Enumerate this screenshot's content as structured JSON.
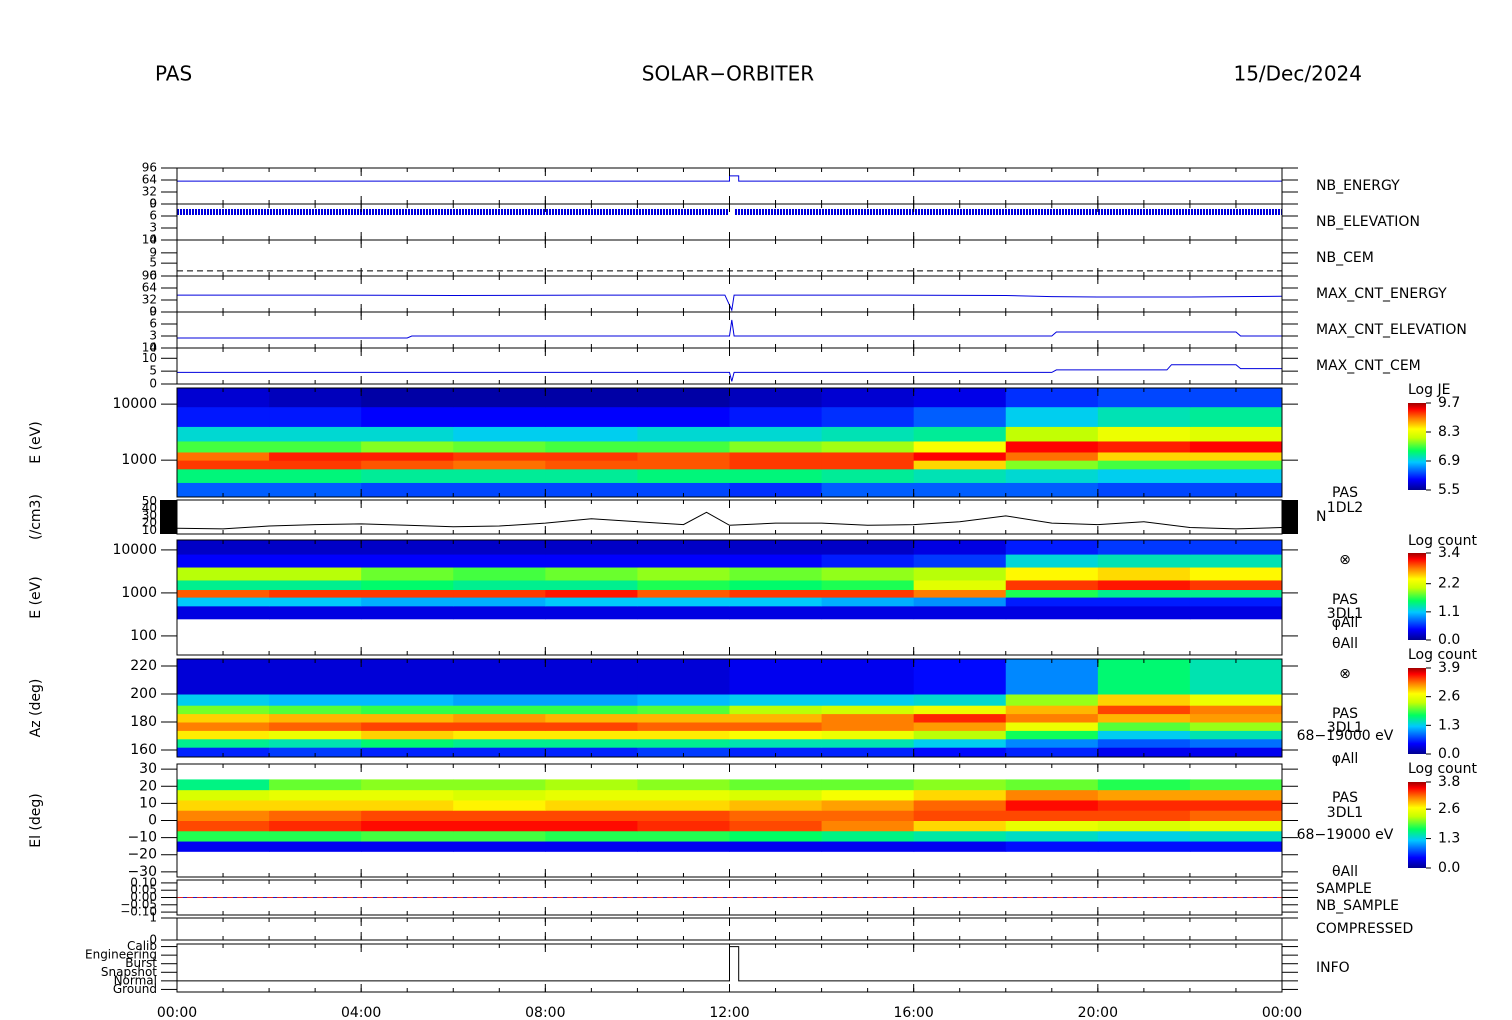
{
  "header": {
    "instrument": "PAS",
    "mission": "SOLAR−ORBITER",
    "date": "15/Dec/2024"
  },
  "chart_data": [
    {
      "type": "line",
      "xlim": [
        0,
        24
      ],
      "ylim": [
        0,
        96
      ],
      "yticks": [
        0,
        32,
        64,
        96
      ],
      "x": [
        0,
        12,
        12,
        12.2,
        12.2,
        24
      ],
      "series": [
        {
          "name": "NB_ENERGY",
          "color": "#0000dd",
          "values": [
            61,
            61,
            75,
            75,
            61,
            61
          ]
        }
      ]
    },
    {
      "type": "line",
      "xlim": [
        0,
        24
      ],
      "ylim": [
        0,
        9
      ],
      "yticks": [
        0,
        3,
        6,
        9
      ],
      "x": [
        0,
        11.98,
        12.05,
        12.12,
        24
      ],
      "series": [
        {
          "name": "NB_ELEVATION",
          "color": "#0000dd",
          "values": [
            7,
            7,
            null,
            7,
            7
          ]
        }
      ]
    },
    {
      "type": "line",
      "xlim": [
        0,
        24
      ],
      "ylim": [
        0,
        14
      ],
      "yticks": [
        0,
        5,
        9,
        14
      ],
      "x": [
        0,
        24
      ],
      "series": [
        {
          "name": "NB_CEM",
          "color": "#000000",
          "linestyle": "dashed",
          "values": [
            2,
            2
          ]
        }
      ]
    },
    {
      "type": "line",
      "xlim": [
        0,
        24
      ],
      "ylim": [
        0,
        96
      ],
      "yticks": [
        0,
        32,
        64,
        96
      ],
      "x": [
        0,
        3,
        6,
        9,
        11.9,
        12.05,
        12.1,
        15,
        18,
        19,
        20,
        22,
        24
      ],
      "series": [
        {
          "name": "MAX_CNT_ENERGY",
          "color": "#0000dd",
          "values": [
            45,
            45,
            44,
            45,
            45,
            5,
            45,
            45,
            44,
            41,
            40,
            40,
            42
          ]
        }
      ]
    },
    {
      "type": "line",
      "xlim": [
        0,
        24
      ],
      "ylim": [
        0,
        9
      ],
      "yticks": [
        0,
        3,
        6,
        9
      ],
      "x": [
        0,
        5,
        5.1,
        12,
        12.05,
        12.1,
        19,
        19.1,
        23,
        23.1,
        24
      ],
      "series": [
        {
          "name": "MAX_CNT_ELEVATION",
          "color": "#0000dd",
          "values": [
            2.5,
            2.5,
            3,
            3,
            7,
            3,
            3,
            4,
            4,
            3,
            3
          ]
        }
      ]
    },
    {
      "type": "line",
      "xlim": [
        0,
        24
      ],
      "ylim": [
        0,
        14
      ],
      "yticks": [
        0,
        5,
        10,
        14
      ],
      "x": [
        0,
        12,
        12.05,
        12.1,
        19,
        19.1,
        21.5,
        21.6,
        23,
        23.1,
        24
      ],
      "series": [
        {
          "name": "MAX_CNT_CEM",
          "color": "#0000dd",
          "values": [
            4.5,
            4.5,
            1,
            4.5,
            4.5,
            5.5,
            5.5,
            7.5,
            7.5,
            6,
            6
          ]
        }
      ]
    },
    {
      "type": "heatmap",
      "ylabel": "E (eV)",
      "ylog": true,
      "xlim": [
        0,
        24
      ],
      "ylim": [
        220,
        19400
      ],
      "yticks": [
        1000,
        10000
      ],
      "x_bins": [
        0,
        2,
        4,
        6,
        8,
        10,
        12,
        14,
        16,
        18,
        20,
        22,
        24
      ],
      "y_bins": [
        220,
        400,
        700,
        1000,
        1400,
        2200,
        4000,
        9000,
        19400
      ],
      "values": [
        [
          6.4,
          6.4,
          6.3,
          6.3,
          6.3,
          6.3,
          6.2,
          6.4,
          6.4,
          6.4,
          6.3,
          6.3
        ],
        [
          7.3,
          7.3,
          7.2,
          7.2,
          7.2,
          7.3,
          7.3,
          7.2,
          7.1,
          7.0,
          6.9,
          6.9
        ],
        [
          9.2,
          9.2,
          9.1,
          9.0,
          9.1,
          9.1,
          9.2,
          9.2,
          8.6,
          7.8,
          7.6,
          7.6
        ],
        [
          9.0,
          9.3,
          9.3,
          9.2,
          9.2,
          9.1,
          9.2,
          9.2,
          9.4,
          9.0,
          8.6,
          8.6
        ],
        [
          7.6,
          7.6,
          7.8,
          7.7,
          7.6,
          7.6,
          7.8,
          7.9,
          8.4,
          9.4,
          9.3,
          9.4
        ],
        [
          7.0,
          7.0,
          7.0,
          6.9,
          6.9,
          7.0,
          7.0,
          7.1,
          7.2,
          8.0,
          8.3,
          8.2
        ],
        [
          6.1,
          6.1,
          6.0,
          6.0,
          6.0,
          6.0,
          6.1,
          6.2,
          6.4,
          6.9,
          7.1,
          7.2
        ],
        [
          5.8,
          5.7,
          5.6,
          5.6,
          5.6,
          5.6,
          5.7,
          5.8,
          5.9,
          6.2,
          6.3,
          6.3
        ]
      ],
      "colorbar_title": "Log JE",
      "zlim": [
        5.5,
        9.7
      ],
      "zticks": [
        5.5,
        6.9,
        8.3,
        9.7
      ]
    },
    {
      "type": "line",
      "ylabel": "(/cm3)",
      "xlim": [
        0,
        24
      ],
      "ylim": [
        5,
        52
      ],
      "yticks": [
        10,
        20,
        30,
        40,
        50
      ],
      "x": [
        0,
        1,
        2,
        3,
        4,
        5,
        6,
        7,
        8,
        9,
        10,
        11,
        11.5,
        12,
        13,
        14,
        15,
        16,
        17,
        18,
        19,
        20,
        21,
        22,
        23,
        24
      ],
      "series": [
        {
          "name": "N",
          "color": "#000000",
          "values": [
            13,
            12,
            16,
            18,
            19,
            17,
            15,
            16,
            20,
            26,
            22,
            18,
            35,
            17,
            20,
            20,
            17,
            18,
            22,
            30,
            20,
            18,
            22,
            14,
            12,
            14
          ]
        }
      ],
      "annotations": [
        "PAS",
        "1DL2"
      ]
    },
    {
      "type": "heatmap",
      "ylabel": "E (eV)",
      "ylog": true,
      "xlim": [
        0,
        24
      ],
      "ylim": [
        36,
        17000
      ],
      "yticks": [
        100,
        1000,
        10000
      ],
      "x_bins": [
        0,
        2,
        4,
        6,
        8,
        10,
        12,
        14,
        16,
        18,
        20,
        22,
        24
      ],
      "y_bins": [
        36,
        250,
        500,
        800,
        1200,
        2000,
        4000,
        8000,
        17000
      ],
      "values": [
        [
          null,
          null,
          null,
          null,
          null,
          null,
          null,
          null,
          null,
          null,
          null,
          null
        ],
        [
          0.3,
          0.3,
          0.3,
          0.3,
          0.3,
          0.3,
          0.3,
          0.3,
          0.3,
          0.3,
          0.3,
          0.3
        ],
        [
          1.1,
          1.1,
          1.0,
          1.0,
          1.1,
          1.1,
          1.1,
          1.0,
          0.9,
          0.5,
          0.5,
          0.5
        ],
        [
          2.9,
          3.0,
          3.0,
          3.0,
          3.1,
          2.9,
          3.0,
          3.0,
          2.8,
          1.6,
          1.4,
          1.4
        ],
        [
          1.4,
          1.4,
          1.5,
          1.4,
          1.4,
          1.6,
          1.5,
          1.6,
          2.2,
          3.0,
          3.1,
          3.0
        ],
        [
          2.0,
          2.0,
          1.8,
          1.7,
          1.8,
          1.9,
          1.8,
          1.9,
          2.0,
          2.4,
          2.5,
          2.4
        ],
        [
          0.4,
          0.4,
          0.4,
          0.4,
          0.4,
          0.4,
          0.4,
          0.5,
          0.6,
          1.2,
          1.3,
          1.3
        ],
        [
          0.2,
          0.2,
          0.2,
          0.2,
          0.2,
          0.2,
          0.2,
          0.2,
          0.3,
          0.5,
          0.6,
          0.6
        ]
      ],
      "colorbar_title": "Log count",
      "zlim": [
        0,
        3.4
      ],
      "zticks": [
        {
          "value": 0,
          "label": "0.0"
        },
        1.1,
        2.2,
        3.4
      ],
      "annotations": [
        "⊗",
        "PAS",
        "3DL1",
        "φAll",
        "θAll"
      ]
    },
    {
      "type": "heatmap",
      "ylabel": "Az (deg)",
      "xlim": [
        0,
        24
      ],
      "ylim": [
        155,
        225
      ],
      "yticks": [
        160,
        180,
        200,
        220
      ],
      "x_bins": [
        0,
        2,
        4,
        6,
        8,
        10,
        12,
        14,
        16,
        18,
        20,
        22,
        24
      ],
      "y_bins": [
        155,
        162,
        168,
        174,
        180,
        186,
        192,
        200,
        225
      ],
      "values": [
        [
          0.6,
          0.7,
          0.6,
          0.6,
          0.6,
          0.7,
          0.6,
          0.6,
          0.5,
          0.6,
          0.4,
          0.4
        ],
        [
          1.6,
          1.5,
          1.7,
          1.6,
          1.6,
          1.6,
          1.5,
          1.5,
          1.3,
          1.0,
          0.8,
          0.9
        ],
        [
          2.8,
          2.6,
          2.9,
          2.8,
          2.8,
          2.8,
          2.7,
          2.6,
          2.3,
          1.8,
          1.3,
          1.5
        ],
        [
          3.2,
          3.3,
          3.4,
          3.4,
          3.4,
          3.3,
          3.3,
          3.2,
          3.1,
          2.6,
          2.0,
          2.2
        ],
        [
          2.9,
          3.0,
          3.0,
          3.1,
          3.0,
          3.0,
          3.0,
          3.2,
          3.5,
          3.2,
          3.0,
          3.1
        ],
        [
          2.1,
          2.0,
          1.9,
          1.9,
          1.9,
          2.0,
          2.3,
          2.4,
          2.6,
          3.0,
          3.4,
          3.2
        ],
        [
          1.3,
          1.2,
          1.2,
          1.1,
          1.1,
          1.2,
          1.3,
          1.3,
          1.4,
          2.2,
          2.9,
          2.6
        ],
        [
          0.3,
          0.3,
          0.3,
          0.3,
          0.3,
          0.3,
          0.4,
          0.4,
          0.5,
          1.0,
          1.7,
          1.5
        ]
      ],
      "colorbar_title": "Log count",
      "zlim": [
        0,
        3.9
      ],
      "zticks": [
        {
          "value": 0,
          "label": "0.0"
        },
        1.3,
        2.6,
        3.9
      ],
      "annotations": [
        "⊗",
        "PAS",
        "3DL1",
        "68−19000 eV",
        "φAll"
      ]
    },
    {
      "type": "heatmap",
      "ylabel": "El (deg)",
      "xlim": [
        0,
        24
      ],
      "ylim": [
        -33,
        33
      ],
      "yticks": [
        {
          "value": -30,
          "label": "−30"
        },
        {
          "value": -20,
          "label": "−20"
        },
        {
          "value": -10,
          "label": "−10"
        },
        0,
        10,
        20,
        30
      ],
      "x_bins": [
        0,
        2,
        4,
        6,
        8,
        10,
        12,
        14,
        16,
        18,
        20,
        22,
        24
      ],
      "y_bins": [
        -18,
        -12,
        -6,
        0,
        6,
        12,
        18,
        24
      ],
      "values": [
        [
          0.4,
          0.4,
          0.4,
          0.4,
          0.4,
          0.4,
          0.4,
          0.4,
          0.4,
          0.5,
          0.5,
          0.5
        ],
        [
          1.8,
          1.8,
          1.9,
          1.9,
          1.8,
          1.8,
          1.7,
          1.6,
          1.5,
          1.4,
          1.3,
          1.4
        ],
        [
          3.3,
          3.4,
          3.5,
          3.5,
          3.5,
          3.4,
          3.3,
          3.1,
          2.8,
          2.5,
          2.4,
          2.5
        ],
        [
          3.1,
          3.2,
          3.3,
          3.3,
          3.3,
          3.3,
          3.2,
          3.2,
          3.3,
          3.3,
          3.3,
          3.2
        ],
        [
          2.8,
          2.8,
          2.8,
          2.7,
          2.8,
          2.8,
          2.9,
          3.0,
          3.2,
          3.5,
          3.4,
          3.4
        ],
        [
          2.4,
          2.5,
          2.5,
          2.4,
          2.5,
          2.5,
          2.4,
          2.6,
          2.8,
          3.1,
          3.0,
          3.0
        ],
        [
          1.6,
          2.0,
          2.1,
          2.1,
          2.2,
          2.1,
          2.0,
          2.0,
          2.1,
          2.0,
          1.8,
          1.9
        ]
      ],
      "colorbar_title": "Log count",
      "zlim": [
        0,
        3.8
      ],
      "zticks": [
        {
          "value": 0,
          "label": "0.0"
        },
        1.3,
        2.6,
        3.8
      ],
      "annotations": [
        "PAS",
        "3DL1",
        "68−19000 eV",
        "θAll"
      ]
    },
    {
      "type": "line",
      "xlim": [
        0,
        24
      ],
      "ylim": [
        -0.12,
        0.12
      ],
      "yticks": [
        {
          "value": -0.1,
          "label": "−0.10"
        },
        {
          "value": -0.05,
          "label": "−0.05"
        },
        {
          "value": 0,
          "label": "0.00"
        },
        {
          "value": 0.05,
          "label": "0.05"
        },
        {
          "value": 0.1,
          "label": "0.10"
        }
      ],
      "x": [
        0,
        24
      ],
      "series": [
        {
          "name": "SAMPLE",
          "color": "#2020c0",
          "values": [
            0,
            0
          ]
        },
        {
          "name": "NB_SAMPLE",
          "color": "#e02020",
          "linestyle": "dashed",
          "values": [
            0,
            0
          ]
        }
      ]
    },
    {
      "type": "line",
      "xlim": [
        0,
        24
      ],
      "ylim": [
        0,
        1
      ],
      "yticks": [
        0,
        1
      ],
      "x": [
        0,
        24
      ],
      "series": [
        {
          "name": "COMPRESSED",
          "color": "#2020c0",
          "values": [
            0,
            0
          ]
        }
      ]
    },
    {
      "type": "line",
      "xlim": [
        0,
        24
      ],
      "ylim": [
        -0.3,
        5.3
      ],
      "yticks": [
        {
          "value": 0,
          "label": "Ground"
        },
        {
          "value": 1,
          "label": "Normal"
        },
        {
          "value": 2,
          "label": "Snapshot"
        },
        {
          "value": 3,
          "label": "Burst"
        },
        {
          "value": 4,
          "label": "Engineering"
        },
        {
          "value": 5,
          "label": "Calib"
        }
      ],
      "x": [
        0,
        12,
        12,
        12.2,
        12.2,
        24
      ],
      "series": [
        {
          "name": "INFO",
          "color": "#000000",
          "legend_color": "#2020c0",
          "values": [
            1,
            1,
            5,
            5,
            1,
            1
          ]
        }
      ],
      "xticks": [
        {
          "value": 0,
          "label": "00:00"
        },
        {
          "value": 4,
          "label": "04:00"
        },
        {
          "value": 8,
          "label": "08:00"
        },
        {
          "value": 12,
          "label": "12:00"
        },
        {
          "value": 16,
          "label": "16:00"
        },
        {
          "value": 20,
          "label": "20:00"
        },
        {
          "value": 24,
          "label": "00:00"
        }
      ]
    }
  ]
}
